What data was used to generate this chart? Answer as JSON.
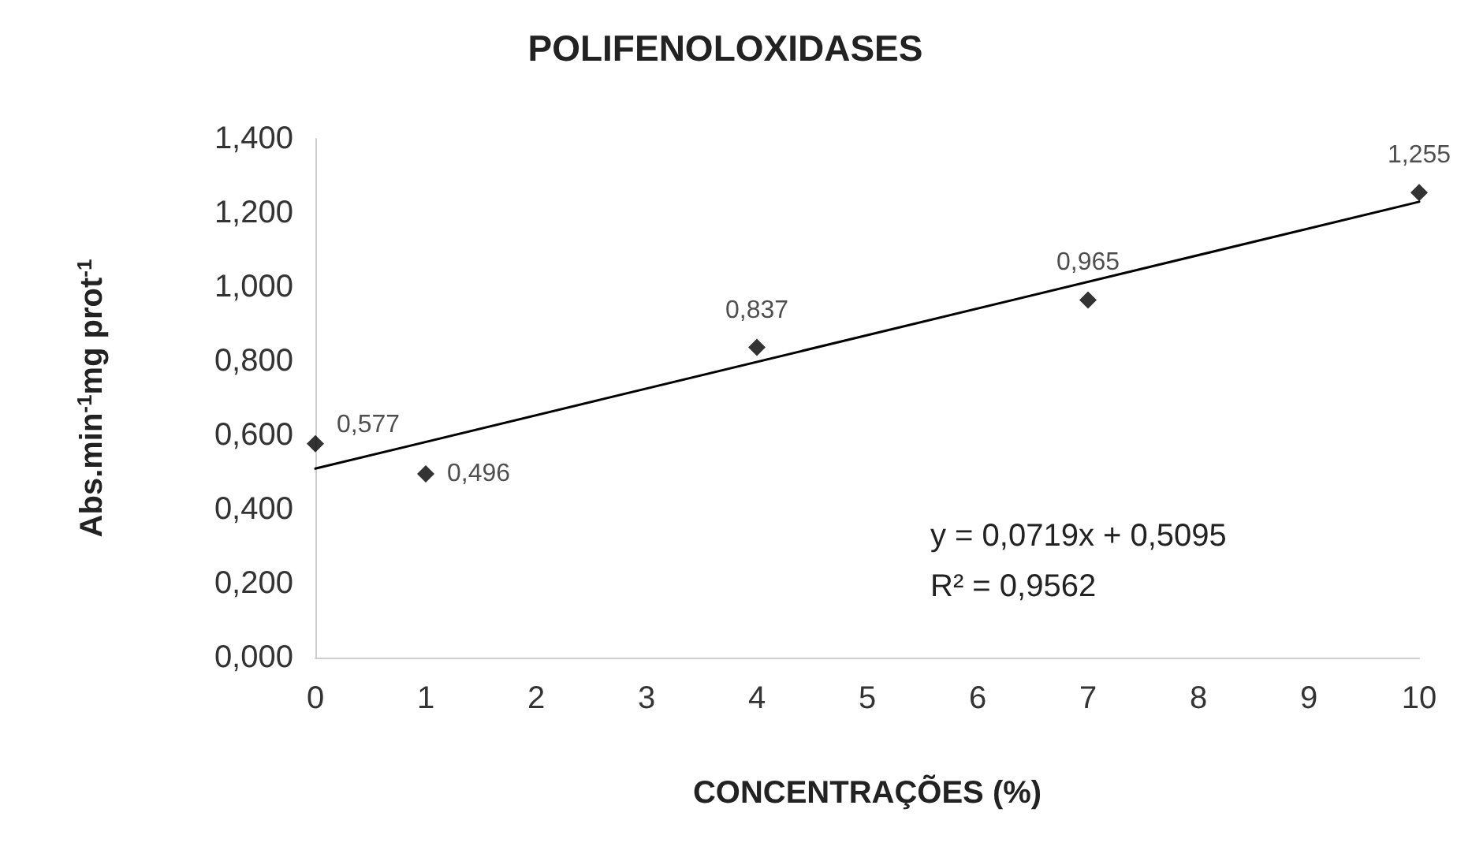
{
  "chart_data": {
    "type": "scatter",
    "title": "POLIFENOLOXIDASES",
    "xlabel": "CONCENTRAÇÕES (%)",
    "ylabel": "Abs.min$^{-1}$mg prot$^{-1}$",
    "x": [
      0,
      1,
      4,
      7,
      10
    ],
    "xlim": [
      0,
      10
    ],
    "xticks": [
      0,
      1,
      2,
      3,
      4,
      5,
      6,
      7,
      8,
      9,
      10
    ],
    "ylim": [
      0,
      1.4
    ],
    "yticks": [
      {
        "value": 0,
        "label": "0,000"
      },
      {
        "value": 0.2,
        "label": "0,200"
      },
      {
        "value": 0.4,
        "label": "0,400"
      },
      {
        "value": 0.6,
        "label": "0,600"
      },
      {
        "value": 0.8,
        "label": "0,800"
      },
      {
        "value": 1.0,
        "label": "1,000"
      },
      {
        "value": 1.2,
        "label": "1,200"
      },
      {
        "value": 1.4,
        "label": "1,400"
      }
    ],
    "grid": false,
    "marker": "diamond",
    "annotations": [
      "y = 0,0719x + 0,5095",
      "R² = 0,9562"
    ],
    "series": [
      {
        "color": "#000000",
        "values": [
          0.577,
          0.496,
          0.837,
          0.965,
          1.255
        ],
        "value_labels": [
          "0,577",
          "0,496",
          "0,837",
          "0,965",
          "1,255"
        ]
      },
      {
        "type": "line",
        "x": [
          0,
          10
        ],
        "values": [
          0.51,
          1.23
        ],
        "color": "#000000",
        "marker": "none",
        "line_style": "solid"
      }
    ]
  }
}
